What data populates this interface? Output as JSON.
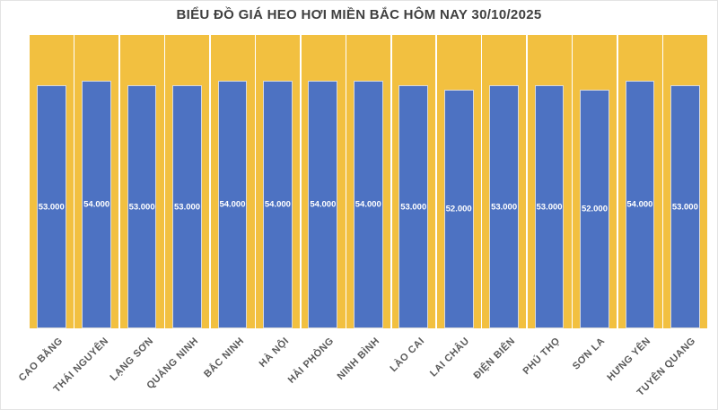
{
  "chart_data": {
    "type": "bar",
    "title": "BIỂU ĐỒ GIÁ HEO HƠI MIỀN BẮC HÔM NAY 30/10/2025",
    "categories": [
      "CAO BẰNG",
      "THÁI NGUYÊN",
      "LẠNG SƠN",
      "QUẢNG NINH",
      "BẮC NINH",
      "HÀ NỘI",
      "HẢI PHÒNG",
      "NINH BÌNH",
      "LÀO CAI",
      "LAI CHÂU",
      "ĐIỆN BIÊN",
      "PHÚ THỌ",
      "SƠN LA",
      "HƯNG YÊN",
      "TUYÊN QUANG"
    ],
    "values": [
      53000,
      54000,
      53000,
      53000,
      54000,
      54000,
      54000,
      54000,
      53000,
      52000,
      53000,
      53000,
      52000,
      54000,
      53000
    ],
    "data_labels": [
      "53.000",
      "54.000",
      "53.000",
      "53.000",
      "54.000",
      "54.000",
      "54.000",
      "54.000",
      "53.000",
      "52.000",
      "53.000",
      "53.000",
      "52.000",
      "54.000",
      "53.000"
    ],
    "xlabel": "",
    "ylabel": "",
    "ylim": [
      0,
      64000
    ],
    "grid": false,
    "legend": "none",
    "data_label_position": "inside-center",
    "category_label_rotation_deg": 45,
    "colors": {
      "bar": "#4D72C2",
      "bar_border": "#D9D9D9",
      "plot_background": "#F2C040",
      "column_separator": "#FFFFFF",
      "title_text": "#404040",
      "category_label_text": "#595959",
      "value_label_text": "#FFFFFF"
    }
  }
}
